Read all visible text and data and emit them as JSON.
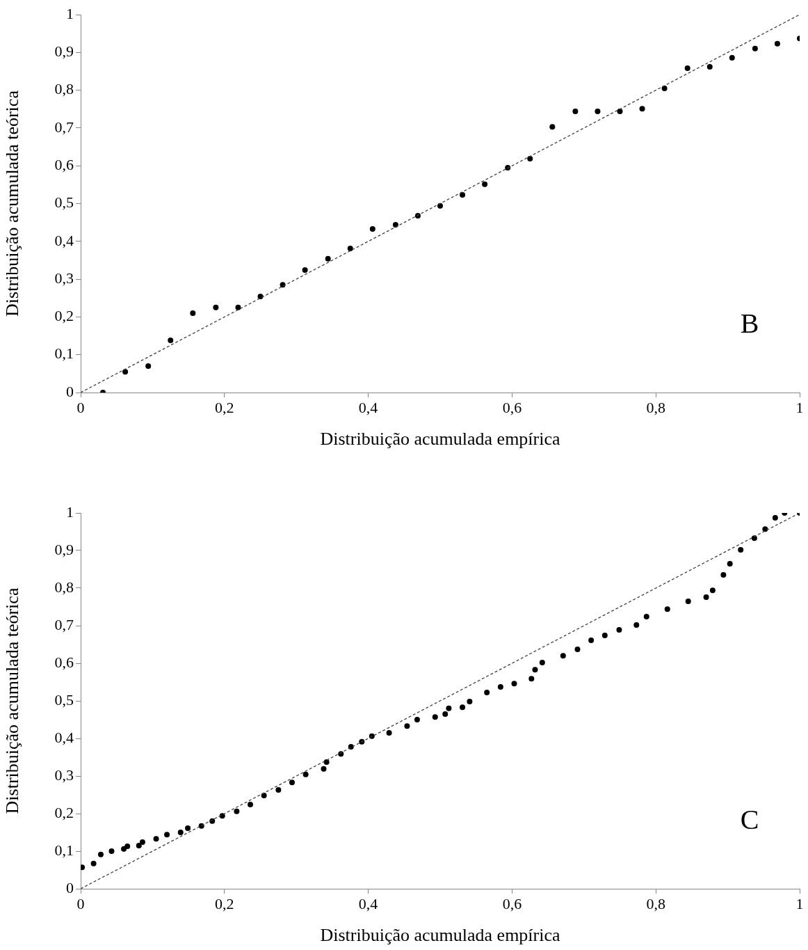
{
  "chart_data": [
    {
      "type": "scatter",
      "xlabel": "Distribuição acumulada empírica",
      "ylabel": "Distribuição acumulada teórica",
      "annotations": [
        "B"
      ],
      "marker": "circle",
      "grid": false,
      "xlim": [
        0,
        1
      ],
      "ylim": [
        0,
        1
      ],
      "xticks": [
        {
          "value": 0,
          "label": "0"
        },
        {
          "value": 0.2,
          "label": "0,2"
        },
        {
          "value": 0.4,
          "label": "0,4"
        },
        {
          "value": 0.6,
          "label": "0,6"
        },
        {
          "value": 0.8,
          "label": "0,8"
        },
        {
          "value": 1,
          "label": "1"
        }
      ],
      "yticks": [
        {
          "value": 0,
          "label": "0"
        },
        {
          "value": 0.1,
          "label": "0,1"
        },
        {
          "value": 0.2,
          "label": "0,2"
        },
        {
          "value": 0.3,
          "label": "0,3"
        },
        {
          "value": 0.4,
          "label": "0,4"
        },
        {
          "value": 0.5,
          "label": "0,5"
        },
        {
          "value": 0.6,
          "label": "0,6"
        },
        {
          "value": 0.7,
          "label": "0,7"
        },
        {
          "value": 0.8,
          "label": "0,8"
        },
        {
          "value": 0.9,
          "label": "0,9"
        },
        {
          "value": 1,
          "label": "1"
        }
      ],
      "series": [
        {
          "type": "scatter",
          "color": "#000000",
          "x": [
            0.031,
            0.062,
            0.094,
            0.125,
            0.156,
            0.188,
            0.219,
            0.25,
            0.281,
            0.312,
            0.344,
            0.375,
            0.406,
            0.438,
            0.469,
            0.5,
            0.531,
            0.562,
            0.594,
            0.625,
            0.656,
            0.688,
            0.719,
            0.75,
            0.781,
            0.812,
            0.844,
            0.875,
            0.906,
            0.938,
            0.969,
            1.0
          ],
          "values": [
            0,
            0.055,
            0.07,
            0.138,
            0.21,
            0.225,
            0.225,
            0.254,
            0.285,
            0.324,
            0.354,
            0.381,
            0.433,
            0.444,
            0.468,
            0.494,
            0.523,
            0.551,
            0.595,
            0.619,
            0.703,
            0.744,
            0.744,
            0.744,
            0.751,
            0.805,
            0.858,
            0.862,
            0.886,
            0.91,
            0.923,
            0.937
          ]
        },
        {
          "type": "line",
          "color": "#404040",
          "line_style": "dashed",
          "marker": "none",
          "x": [
            0,
            1
          ],
          "values": [
            0,
            1
          ]
        }
      ]
    },
    {
      "type": "scatter",
      "xlabel": "Distribuição acumulada empírica",
      "ylabel": "Distribuição acumulada teórica",
      "annotations": [
        "C"
      ],
      "marker": "circle",
      "grid": false,
      "xlim": [
        0,
        1
      ],
      "ylim": [
        0,
        1
      ],
      "xticks": [
        {
          "value": 0,
          "label": "0"
        },
        {
          "value": 0.2,
          "label": "0,2"
        },
        {
          "value": 0.4,
          "label": "0,4"
        },
        {
          "value": 0.6,
          "label": "0,6"
        },
        {
          "value": 0.8,
          "label": "0,8"
        },
        {
          "value": 1,
          "label": "1"
        }
      ],
      "yticks": [
        {
          "value": 0,
          "label": "0"
        },
        {
          "value": 0.1,
          "label": "0,1"
        },
        {
          "value": 0.2,
          "label": "0,2"
        },
        {
          "value": 0.3,
          "label": "0,3"
        },
        {
          "value": 0.4,
          "label": "0,4"
        },
        {
          "value": 0.5,
          "label": "0,5"
        },
        {
          "value": 0.6,
          "label": "0,6"
        },
        {
          "value": 0.7,
          "label": "0,7"
        },
        {
          "value": 0.8,
          "label": "0,8"
        },
        {
          "value": 0.9,
          "label": "0,9"
        },
        {
          "value": 1,
          "label": "1"
        }
      ],
      "series": [
        {
          "type": "scatter",
          "color": "#000000",
          "x": [
            0.002,
            0.018,
            0.028,
            0.043,
            0.06,
            0.065,
            0.081,
            0.086,
            0.105,
            0.12,
            0.139,
            0.149,
            0.168,
            0.183,
            0.197,
            0.217,
            0.236,
            0.255,
            0.275,
            0.294,
            0.313,
            0.338,
            0.342,
            0.362,
            0.376,
            0.391,
            0.405,
            0.429,
            0.454,
            0.468,
            0.493,
            0.507,
            0.512,
            0.531,
            0.541,
            0.565,
            0.584,
            0.603,
            0.627,
            0.632,
            0.642,
            0.671,
            0.691,
            0.71,
            0.729,
            0.749,
            0.773,
            0.787,
            0.816,
            0.845,
            0.87,
            0.879,
            0.894,
            0.903,
            0.918,
            0.937,
            0.952,
            0.966,
            0.979,
            1.0
          ],
          "values": [
            0.057,
            0.067,
            0.091,
            0.1,
            0.106,
            0.113,
            0.115,
            0.124,
            0.133,
            0.144,
            0.15,
            0.161,
            0.167,
            0.18,
            0.194,
            0.206,
            0.224,
            0.248,
            0.263,
            0.283,
            0.304,
            0.319,
            0.337,
            0.359,
            0.378,
            0.391,
            0.406,
            0.415,
            0.433,
            0.45,
            0.457,
            0.465,
            0.48,
            0.483,
            0.498,
            0.522,
            0.537,
            0.546,
            0.559,
            0.583,
            0.602,
            0.62,
            0.637,
            0.661,
            0.674,
            0.689,
            0.702,
            0.724,
            0.744,
            0.765,
            0.776,
            0.794,
            0.835,
            0.865,
            0.902,
            0.933,
            0.957,
            0.987,
            1.0,
            1.0
          ]
        },
        {
          "type": "line",
          "color": "#404040",
          "line_style": "dashed",
          "marker": "none",
          "x": [
            0,
            1
          ],
          "values": [
            0,
            1
          ]
        }
      ]
    }
  ]
}
